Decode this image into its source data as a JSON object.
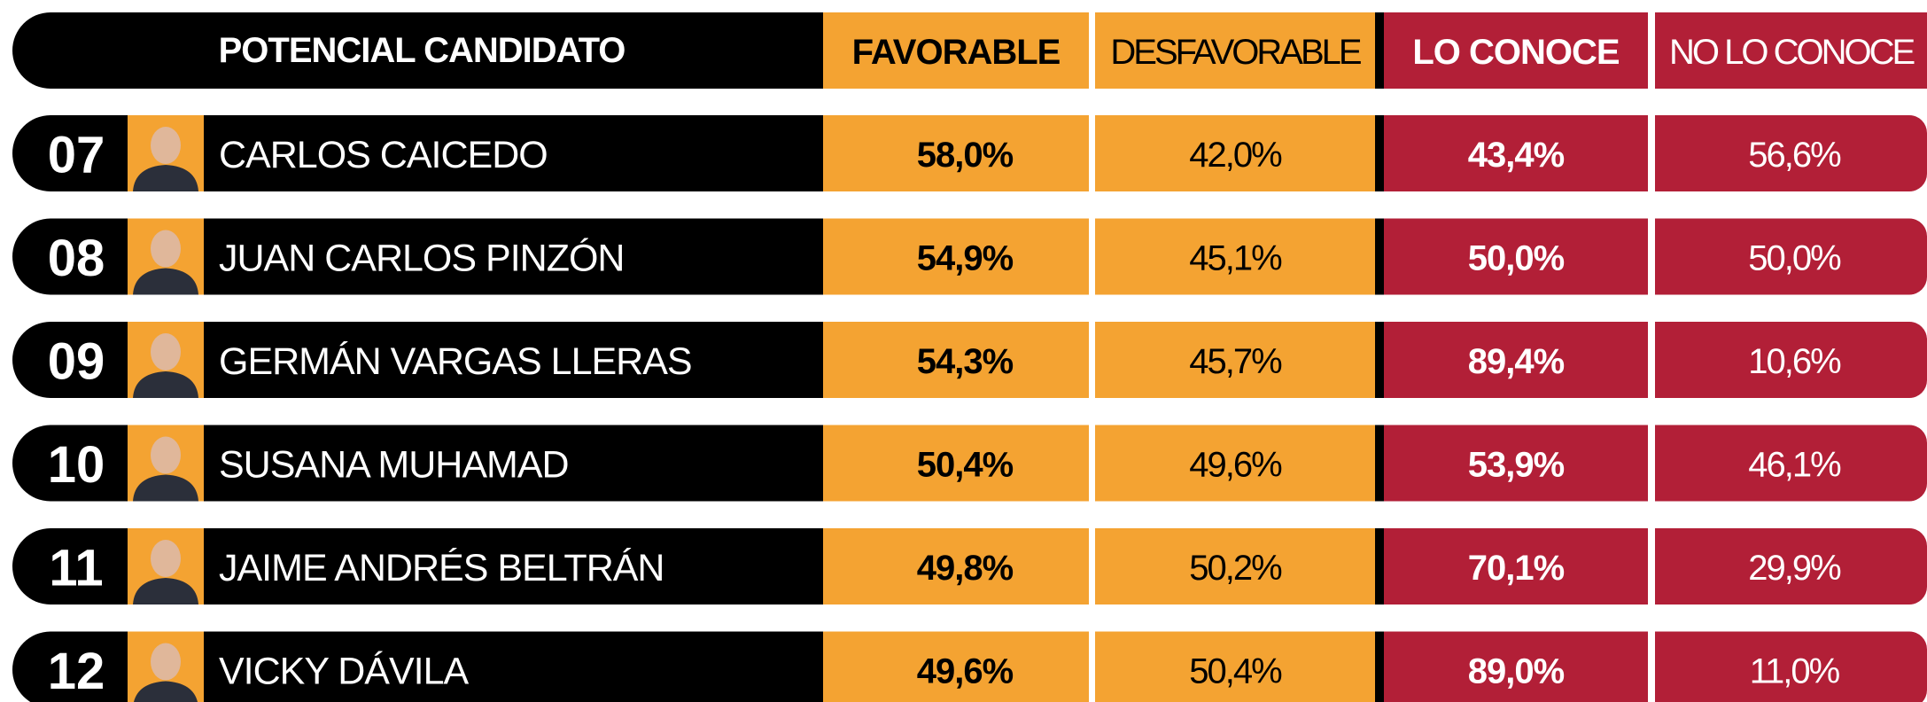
{
  "header": {
    "candidate": "POTENCIAL CANDIDATO",
    "favorable": "FAVORABLE",
    "unfavorable": "DESFAVORABLE",
    "knows": "LO CONOCE",
    "does_not_know": "NO LO CONOCE"
  },
  "rows": [
    {
      "number": "07",
      "name": "CARLOS CAICEDO",
      "favorable": "58,0%",
      "unfavorable": "42,0%",
      "knows": "43,4%",
      "does_not_know": "56,6%"
    },
    {
      "number": "08",
      "name": "JUAN CARLOS PINZÓN",
      "favorable": "54,9%",
      "unfavorable": "45,1%",
      "knows": "50,0%",
      "does_not_know": "50,0%"
    },
    {
      "number": "09",
      "name": "GERMÁN VARGAS LLERAS",
      "favorable": "54,3%",
      "unfavorable": "45,7%",
      "knows": "89,4%",
      "does_not_know": "10,6%"
    },
    {
      "number": "10",
      "name": "SUSANA MUHAMAD",
      "favorable": "50,4%",
      "unfavorable": "49,6%",
      "knows": "53,9%",
      "does_not_know": "46,1%"
    },
    {
      "number": "11",
      "name": "JAIME ANDRÉS BELTRÁN",
      "favorable": "49,8%",
      "unfavorable": "50,2%",
      "knows": "70,1%",
      "does_not_know": "29,9%"
    },
    {
      "number": "12",
      "name": "VICKY DÁVILA",
      "favorable": "49,6%",
      "unfavorable": "50,4%",
      "knows": "89,0%",
      "does_not_know": "11,0%"
    }
  ]
}
